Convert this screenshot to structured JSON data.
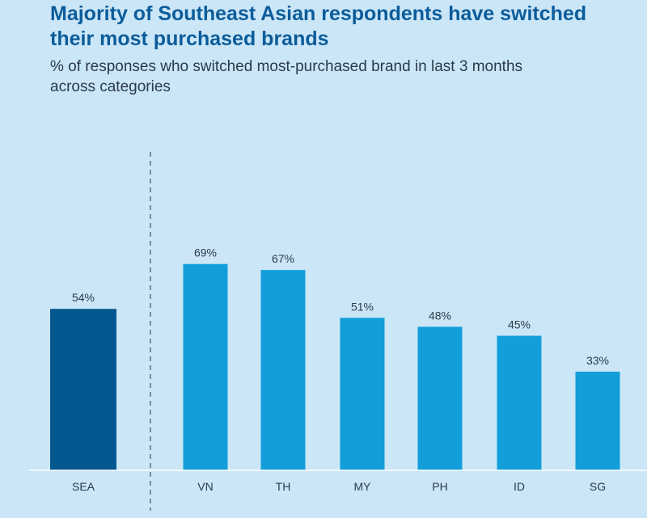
{
  "chart_data": {
    "type": "bar",
    "title": "Majority of Southeast Asian respondents have switched their most purchased brands",
    "subtitle": "% of responses who switched most-purchased brand in last 3 months across categories",
    "categories": [
      "SEA",
      "VN",
      "TH",
      "MY",
      "PH",
      "ID",
      "SG"
    ],
    "values": [
      54,
      69,
      67,
      51,
      48,
      45,
      33
    ],
    "value_labels": [
      "54%",
      "69%",
      "67%",
      "51%",
      "48%",
      "45%",
      "33%"
    ],
    "ylim": [
      0,
      100
    ],
    "grid": false,
    "legend": "none",
    "divider_after_category": "SEA",
    "colors": {
      "highlight": "#04588f",
      "bar": "#129fd9",
      "axis": "#ffffff",
      "divider": "#4a6a85",
      "text": "#2a3a48",
      "title": "#0b5c9a",
      "background": "#cbe6f7"
    }
  }
}
